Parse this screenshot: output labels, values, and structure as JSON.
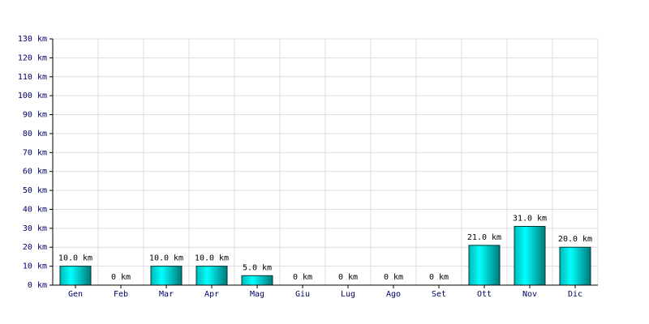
{
  "chart_data": {
    "type": "bar",
    "categories": [
      "Gen",
      "Feb",
      "Mar",
      "Apr",
      "Mag",
      "Giu",
      "Lug",
      "Ago",
      "Set",
      "Ott",
      "Nov",
      "Dic"
    ],
    "values": [
      10,
      0,
      10,
      10,
      5,
      0,
      0,
      0,
      0,
      21,
      31,
      20
    ],
    "value_labels": [
      "10.0 km",
      "0 km",
      "10.0 km",
      "10.0 km",
      "5.0 km",
      "0 km",
      "0 km",
      "0 km",
      "0 km",
      "21.0 km",
      "31.0 km",
      "20.0 km"
    ],
    "color": "#00d8d8",
    "ylim": [
      0,
      130
    ],
    "yticks": [
      {
        "value": 0,
        "label": "0 km"
      },
      {
        "value": 10,
        "label": "10 km"
      },
      {
        "value": 20,
        "label": "20 km"
      },
      {
        "value": 30,
        "label": "30 km"
      },
      {
        "value": 40,
        "label": "40 km"
      },
      {
        "value": 50,
        "label": "50 km"
      },
      {
        "value": 60,
        "label": "60 km"
      },
      {
        "value": 70,
        "label": "70 km"
      },
      {
        "value": 80,
        "label": "80 km"
      },
      {
        "value": 90,
        "label": "90 km"
      },
      {
        "value": 100,
        "label": "100 km"
      },
      {
        "value": 110,
        "label": "110 km"
      },
      {
        "value": 120,
        "label": "120 km"
      },
      {
        "value": 130,
        "label": "130 km"
      }
    ],
    "grid": true
  }
}
